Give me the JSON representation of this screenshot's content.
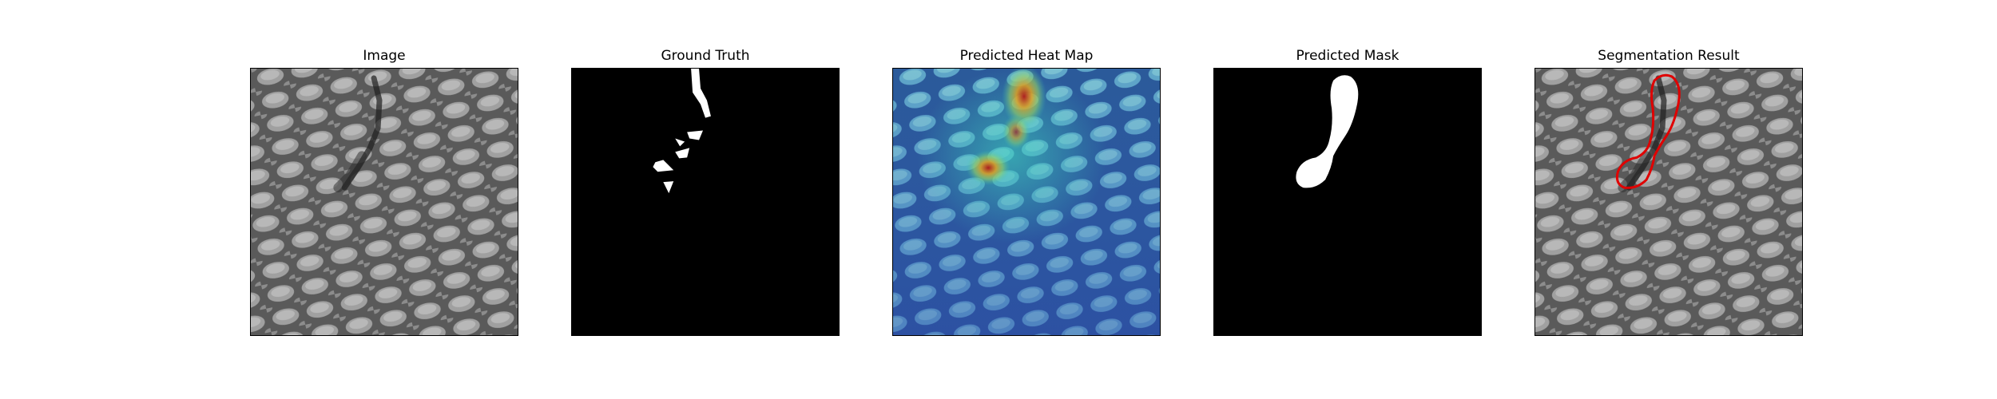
{
  "panels": [
    {
      "title": "Image",
      "kind": "texture-image"
    },
    {
      "title": "Ground Truth",
      "kind": "binary-mask"
    },
    {
      "title": "Predicted Heat Map",
      "kind": "heatmap-overlay"
    },
    {
      "title": "Predicted Mask",
      "kind": "binary-mask"
    },
    {
      "title": "Segmentation Result",
      "kind": "contour-overlay"
    }
  ],
  "colors": {
    "background": "#ffffff",
    "mask_bg": "#000000",
    "mask_fg": "#ffffff",
    "texture_dark": "#4a4a4a",
    "texture_light": "#9c9c9c",
    "heat_low": "#2a4fb0",
    "heat_mid": "#3fc0c0",
    "heat_high": "#c81e1e",
    "contour": "#e00000"
  }
}
